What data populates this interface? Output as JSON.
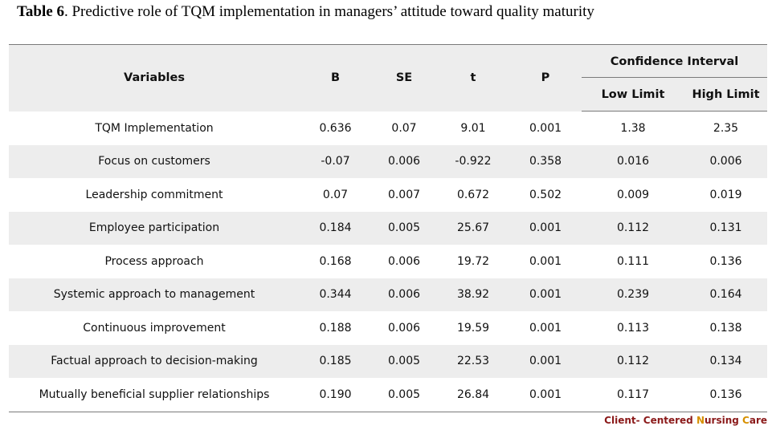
{
  "caption": {
    "lead": "Table 6",
    "rest": ". Predictive role of TQM implementation in managers’ attitude toward quality maturity"
  },
  "table": {
    "headers": {
      "variables": "Variables",
      "b": "B",
      "se": "SE",
      "t": "t",
      "p": "P",
      "ci": "Confidence Interval",
      "low": "Low Limit",
      "high": "High Limit"
    },
    "rows": [
      {
        "variable": "TQM Implementation",
        "b": "0.636",
        "se": "0.07",
        "t": "9.01",
        "p": "0.001",
        "low": "1.38",
        "high": "2.35"
      },
      {
        "variable": "Focus on customers",
        "b": "-0.07",
        "se": "0.006",
        "t": "-0.922",
        "p": "0.358",
        "low": "0.016",
        "high": "0.006"
      },
      {
        "variable": "Leadership commitment",
        "b": "0.07",
        "se": "0.007",
        "t": "0.672",
        "p": "0.502",
        "low": "0.009",
        "high": "0.019"
      },
      {
        "variable": "Employee participation",
        "b": "0.184",
        "se": "0.005",
        "t": "25.67",
        "p": "0.001",
        "low": "0.112",
        "high": "0.131"
      },
      {
        "variable": "Process approach",
        "b": "0.168",
        "se": "0.006",
        "t": "19.72",
        "p": "0.001",
        "low": "0.111",
        "high": "0.136"
      },
      {
        "variable": "Systemic approach to management",
        "b": "0.344",
        "se": "0.006",
        "t": "38.92",
        "p": "0.001",
        "low": "0.239",
        "high": "0.164"
      },
      {
        "variable": "Continuous improvement",
        "b": "0.188",
        "se": "0.006",
        "t": "19.59",
        "p": "0.001",
        "low": "0.113",
        "high": "0.138"
      },
      {
        "variable": "Factual approach to decision-making",
        "b": "0.185",
        "se": "0.005",
        "t": "22.53",
        "p": "0.001",
        "low": "0.112",
        "high": "0.134"
      },
      {
        "variable": "Mutually beneficial supplier relationships",
        "b": "0.190",
        "se": "0.005",
        "t": "26.84",
        "p": "0.001",
        "low": "0.117",
        "high": "0.136"
      }
    ]
  },
  "footer": {
    "part1": "Client- Centered ",
    "part2": "N",
    "part3": "ursing ",
    "part4": "C",
    "part5": "are"
  },
  "colors": {
    "header_bg": "#ededed",
    "footer_red": "#8b1a1a",
    "footer_yellow": "#d79000"
  }
}
